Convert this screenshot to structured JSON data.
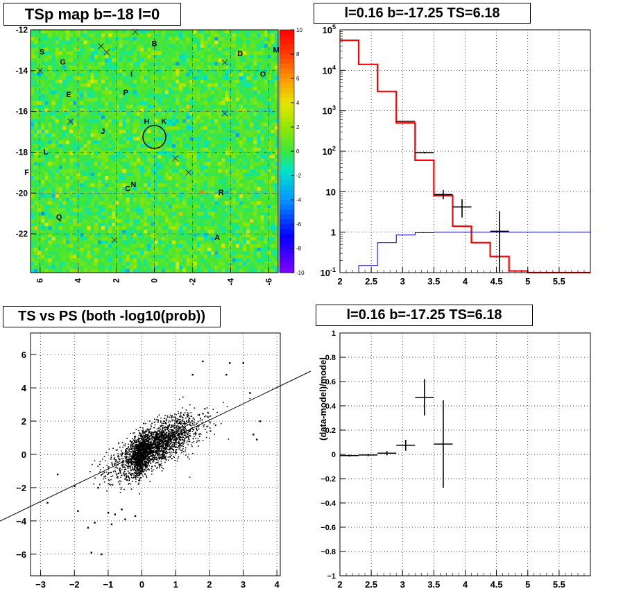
{
  "chart_data": [
    {
      "type": "heatmap",
      "title": "TSp map b=-18 l=0",
      "x_ticks": [
        "6",
        "4",
        "2",
        "0",
        "-2",
        "-4",
        "-6"
      ],
      "x_tick_values": [
        6,
        4,
        2,
        0,
        -2,
        -4,
        -6
      ],
      "xlim": [
        6.5,
        -6.5
      ],
      "y_ticks": [
        "-12",
        "-14",
        "-16",
        "-18",
        "-20",
        "-22"
      ],
      "y_tick_values": [
        -12,
        -14,
        -16,
        -18,
        -20,
        -22
      ],
      "ylim": [
        -23.9,
        -12
      ],
      "colorbar": {
        "ticks": [
          "10",
          "8",
          "6",
          "4",
          "2",
          "0",
          "-2",
          "-4",
          "-6",
          "-8",
          "-10"
        ],
        "tick_values": [
          10,
          8,
          6,
          4,
          2,
          0,
          -2,
          -4,
          -6,
          -8,
          -10
        ],
        "range": [
          -10,
          10
        ]
      },
      "source_labels": [
        {
          "text": "S",
          "l": 5.9,
          "b": -13.2
        },
        {
          "text": "G",
          "l": 4.8,
          "b": -13.7
        },
        {
          "text": "B",
          "l": 0.0,
          "b": -12.8
        },
        {
          "text": "D",
          "l": -4.5,
          "b": -13.3
        },
        {
          "text": "M",
          "l": -6.4,
          "b": -13.1
        },
        {
          "text": "O",
          "l": -5.7,
          "b": -14.3
        },
        {
          "text": "I",
          "l": 1.2,
          "b": -14.3
        },
        {
          "text": "E",
          "l": 4.5,
          "b": -15.3
        },
        {
          "text": "P",
          "l": 1.5,
          "b": -15.2
        },
        {
          "text": "H",
          "l": 0.4,
          "b": -16.6
        },
        {
          "text": "K",
          "l": -0.5,
          "b": -16.6
        },
        {
          "text": "J",
          "l": 2.7,
          "b": -17.1
        },
        {
          "text": "L",
          "l": 5.7,
          "b": -18.1
        },
        {
          "text": "F",
          "l": 6.7,
          "b": -19.1
        },
        {
          "text": "C",
          "l": 1.4,
          "b": -19.9
        },
        {
          "text": "N",
          "l": 1.1,
          "b": -19.7
        },
        {
          "text": "R",
          "l": -3.5,
          "b": -20.1
        },
        {
          "text": "Q",
          "l": 5.0,
          "b": -21.3
        },
        {
          "text": "A",
          "l": -3.3,
          "b": -22.3
        }
      ],
      "x_markers": [
        [
          2.8,
          -12.8
        ],
        [
          2.5,
          -13.1
        ],
        [
          1.0,
          -12.1
        ],
        [
          4.4,
          -16.5
        ],
        [
          6.0,
          -14.0
        ],
        [
          -1.1,
          -18.3
        ],
        [
          -3.7,
          -13.6
        ],
        [
          2.1,
          -22.3
        ],
        [
          -3.7,
          -16.1
        ],
        [
          -1.8,
          -19.0
        ]
      ],
      "circle": {
        "l": 0.0,
        "b": -17.25,
        "r": 0.6
      }
    },
    {
      "type": "line",
      "title": "l=0.16 b=-17.25 TS=6.18",
      "x_ticks": [
        "2",
        "2.5",
        "3",
        "3.5",
        "4",
        "4.5",
        "5",
        "5.5"
      ],
      "x_tick_values": [
        2,
        2.5,
        3,
        3.5,
        4,
        4.5,
        5,
        5.5
      ],
      "xlim": [
        2,
        6
      ],
      "y_scale": "log",
      "y_ticks": [
        "10^5",
        "10^4",
        "10^3",
        "10^2",
        "10",
        "1",
        "10^-1"
      ],
      "y_tick_values": [
        100000,
        10000,
        1000,
        100,
        10,
        1,
        0.1
      ],
      "ylim": [
        0.1,
        100000
      ],
      "bin_edges": [
        2.0,
        2.3,
        2.6,
        2.9,
        3.2,
        3.5,
        3.8,
        4.1,
        4.4,
        4.7,
        5.0,
        6.0
      ],
      "series": [
        {
          "color": "#ff0000",
          "values": [
            55000,
            14000,
            3000,
            500,
            60,
            8,
            1.4,
            0.55,
            0.25,
            0.11,
            0.1
          ]
        },
        {
          "color": "#0000cc",
          "values": [
            0.1,
            0.15,
            0.55,
            0.85,
            0.97,
            1.0,
            1.0,
            1.0,
            1.0,
            1.0,
            1.0
          ]
        }
      ],
      "data_points": [
        {
          "x": 3.05,
          "y": 550,
          "xerr": 0.15,
          "lo": 540,
          "hi": 560
        },
        {
          "x": 3.35,
          "y": 92,
          "xerr": 0.15,
          "lo": 88,
          "hi": 96
        },
        {
          "x": 3.65,
          "y": 8.5,
          "xerr": 0.15,
          "lo": 6.5,
          "hi": 11
        },
        {
          "x": 3.95,
          "y": 4.2,
          "xerr": 0.15,
          "lo": 2.3,
          "hi": 6.5
        },
        {
          "x": 4.55,
          "y": 1.05,
          "xerr": 0.15,
          "lo": 0.1,
          "hi": 3.3
        }
      ]
    },
    {
      "type": "scatter",
      "title": "TS vs PS (both -log10(prob))",
      "x_ticks": [
        "-3",
        "-2",
        "-1",
        "0",
        "1",
        "2",
        "3",
        "4"
      ],
      "x_tick_values": [
        -3,
        -2,
        -1,
        0,
        1,
        2,
        3,
        4
      ],
      "xlim": [
        -3.3,
        4.1
      ],
      "y_ticks": [
        "6",
        "4",
        "2",
        "0",
        "-2",
        "-4",
        "-6"
      ],
      "y_tick_values": [
        6,
        4,
        2,
        0,
        -2,
        -4,
        -6
      ],
      "ylim": [
        -7.3,
        7.3
      ],
      "fit_line": {
        "x1": -4.5,
        "y1": -4.3,
        "x2": 5.0,
        "y2": 5.0
      },
      "cloud": {
        "n": 7000,
        "x_mean": 0.4,
        "x_sd": 0.65,
        "y_slope": 0.95,
        "y_noise": 0.6
      },
      "outliers": [
        [
          -1.5,
          -5.9
        ],
        [
          -1.2,
          -6.0
        ],
        [
          -2.8,
          -2.9
        ],
        [
          -1.9,
          -3.4
        ],
        [
          -2.0,
          -1.9
        ],
        [
          -2.5,
          -1.2
        ],
        [
          -1.4,
          -4.1
        ],
        [
          -1.6,
          -4.4
        ],
        [
          -1.0,
          -3.5
        ],
        [
          -0.8,
          -3.6
        ],
        [
          -0.5,
          -3.9
        ],
        [
          -0.2,
          -3.7
        ],
        [
          3.0,
          5.5
        ],
        [
          3.5,
          2.0
        ],
        [
          3.4,
          0.9
        ],
        [
          2.5,
          4.8
        ],
        [
          3.2,
          3.7
        ],
        [
          3.3,
          1.2
        ],
        [
          1.8,
          5.6
        ],
        [
          2.6,
          5.5
        ],
        [
          1.5,
          4.8
        ],
        [
          -1.3,
          -2.0
        ],
        [
          -0.6,
          -3.3
        ],
        [
          -0.9,
          -4.2
        ]
      ]
    },
    {
      "type": "line",
      "title": "l=0.16 b=-17.25 TS=6.18",
      "ylabel": "(data-model)/model",
      "x_ticks": [
        "2",
        "2.5",
        "3",
        "3.5",
        "4",
        "4.5",
        "5",
        "5.5"
      ],
      "x_tick_values": [
        2,
        2.5,
        3,
        3.5,
        4,
        4.5,
        5,
        5.5
      ],
      "xlim": [
        2,
        6
      ],
      "y_ticks": [
        "1",
        "0.8",
        "0.6",
        "0.4",
        "0.2",
        "0",
        "−0.2",
        "−0.4",
        "−0.6",
        "−0.8",
        "−1"
      ],
      "y_tick_values": [
        1,
        0.8,
        0.6,
        0.4,
        0.2,
        0,
        -0.2,
        -0.4,
        -0.6,
        -0.8,
        -1
      ],
      "ylim": [
        -1,
        1
      ],
      "data_points": [
        {
          "x": 2.15,
          "y": -0.01,
          "xerr": 0.15,
          "yerr": 0.008
        },
        {
          "x": 2.45,
          "y": -0.005,
          "xerr": 0.15,
          "yerr": 0.01
        },
        {
          "x": 2.75,
          "y": 0.01,
          "xerr": 0.15,
          "yerr": 0.018
        },
        {
          "x": 3.05,
          "y": 0.075,
          "xerr": 0.15,
          "yerr": 0.045
        },
        {
          "x": 3.35,
          "y": 0.47,
          "xerr": 0.15,
          "yerr": 0.15
        },
        {
          "x": 3.65,
          "y": 0.085,
          "xerr": 0.15,
          "yerr": 0.36
        }
      ]
    }
  ]
}
